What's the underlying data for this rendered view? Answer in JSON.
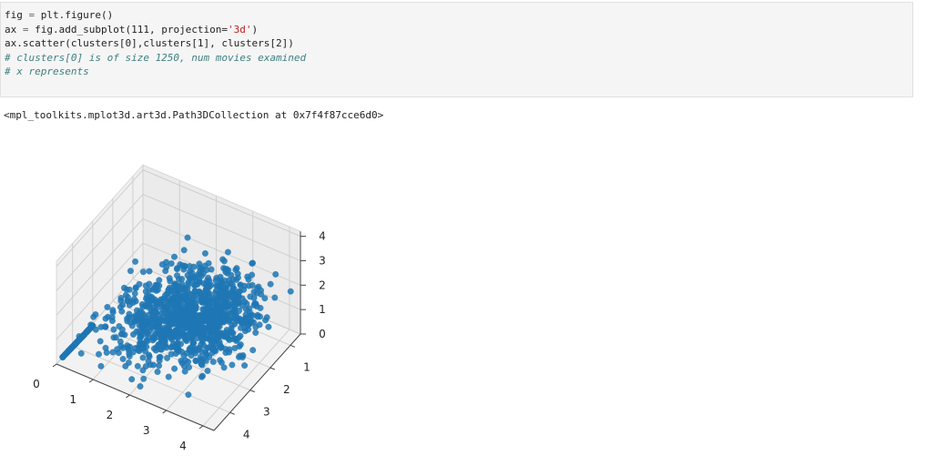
{
  "code_cell": {
    "lines": [
      [
        {
          "t": "plain",
          "v": "fig "
        },
        {
          "t": "op",
          "v": "="
        },
        {
          "t": "plain",
          "v": " plt.figure()"
        }
      ],
      [
        {
          "t": "plain",
          "v": "ax "
        },
        {
          "t": "op",
          "v": "="
        },
        {
          "t": "plain",
          "v": " fig.add_subplot(111, projection="
        },
        {
          "t": "str",
          "v": "'3d'"
        },
        {
          "t": "plain",
          "v": ")"
        }
      ],
      [
        {
          "t": "plain",
          "v": "ax.scatter(clusters[0],clusters[1], clusters[2])"
        }
      ],
      [
        {
          "t": "com",
          "v": "# clusters[0] is of size 1250, num movies examined"
        }
      ],
      [
        {
          "t": "com",
          "v": "# x represents"
        }
      ]
    ]
  },
  "output": {
    "text": "<mpl_toolkits.mplot3d.art3d.Path3DCollection at 0x7f4f87cce6d0>"
  },
  "chart_data": {
    "type": "scatter",
    "projection": "3d",
    "point_color": "#1f77b4",
    "x_ticks": [
      "0",
      "1",
      "2",
      "3",
      "4"
    ],
    "y_ticks": [
      "1",
      "2",
      "3",
      "4"
    ],
    "z_ticks": [
      "0",
      "1",
      "2",
      "3",
      "4"
    ],
    "xlim": [
      0,
      4.3
    ],
    "ylim": [
      0.5,
      4.8
    ],
    "zlim": [
      0,
      4.2
    ],
    "point_count": 1250,
    "grid": true
  }
}
